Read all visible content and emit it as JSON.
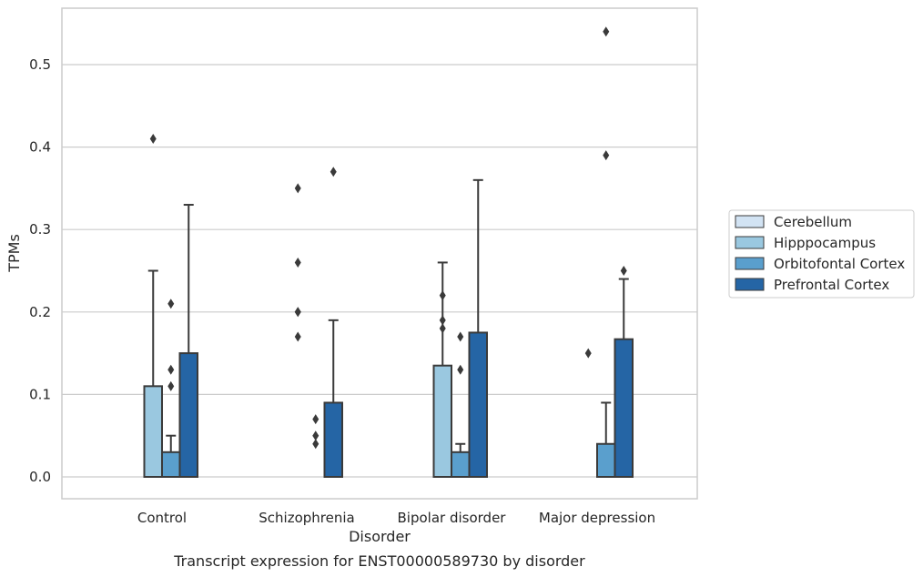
{
  "chart_data": {
    "type": "bar",
    "title": "",
    "caption": "Transcript expression for ENST00000589730 by disorder",
    "xlabel": "Disorder",
    "ylabel": "TPMs",
    "ylim": [
      -0.026,
      0.569
    ],
    "yticks": [
      "0.0",
      "0.1",
      "0.2",
      "0.3",
      "0.4",
      "0.5"
    ],
    "grid": "horizontal",
    "legend_position": "right",
    "categories": [
      "Control",
      "Schizophrenia",
      "Bipolar disorder",
      "Major depression"
    ],
    "series": [
      {
        "name": "Cerebellum",
        "color": "#d2e3f3",
        "values": [
          0.0,
          0.0,
          0.0,
          0.0
        ],
        "error_upper": [
          0.0,
          0.0,
          0.0,
          0.0
        ],
        "outliers": [
          [],
          [],
          [],
          []
        ]
      },
      {
        "name": "Hipppocampus",
        "color": "#9ac8e0",
        "values": [
          0.11,
          0.0,
          0.135,
          0.0
        ],
        "error_upper": [
          0.25,
          0.0,
          0.26,
          0.0
        ],
        "outliers": [
          [
            0.41
          ],
          [
            0.35,
            0.26,
            0.2,
            0.2,
            0.17
          ],
          [
            0.22,
            0.19,
            0.18
          ],
          [
            0.15
          ]
        ]
      },
      {
        "name": "Orbitofontal Cortex",
        "color": "#5a9fcd",
        "values": [
          0.03,
          0.0,
          0.03,
          0.04
        ],
        "error_upper": [
          0.05,
          0.0,
          0.04,
          0.09
        ],
        "outliers": [
          [
            0.21,
            0.13,
            0.11
          ],
          [
            0.07,
            0.05,
            0.04
          ],
          [
            0.17,
            0.13
          ],
          [
            0.54,
            0.39
          ]
        ]
      },
      {
        "name": "Prefrontal Cortex",
        "color": "#2565a5",
        "values": [
          0.15,
          0.09,
          0.175,
          0.167
        ],
        "error_upper": [
          0.33,
          0.19,
          0.36,
          0.24
        ],
        "outliers": [
          [],
          [
            0.37
          ],
          [],
          [
            0.25
          ]
        ]
      }
    ]
  }
}
